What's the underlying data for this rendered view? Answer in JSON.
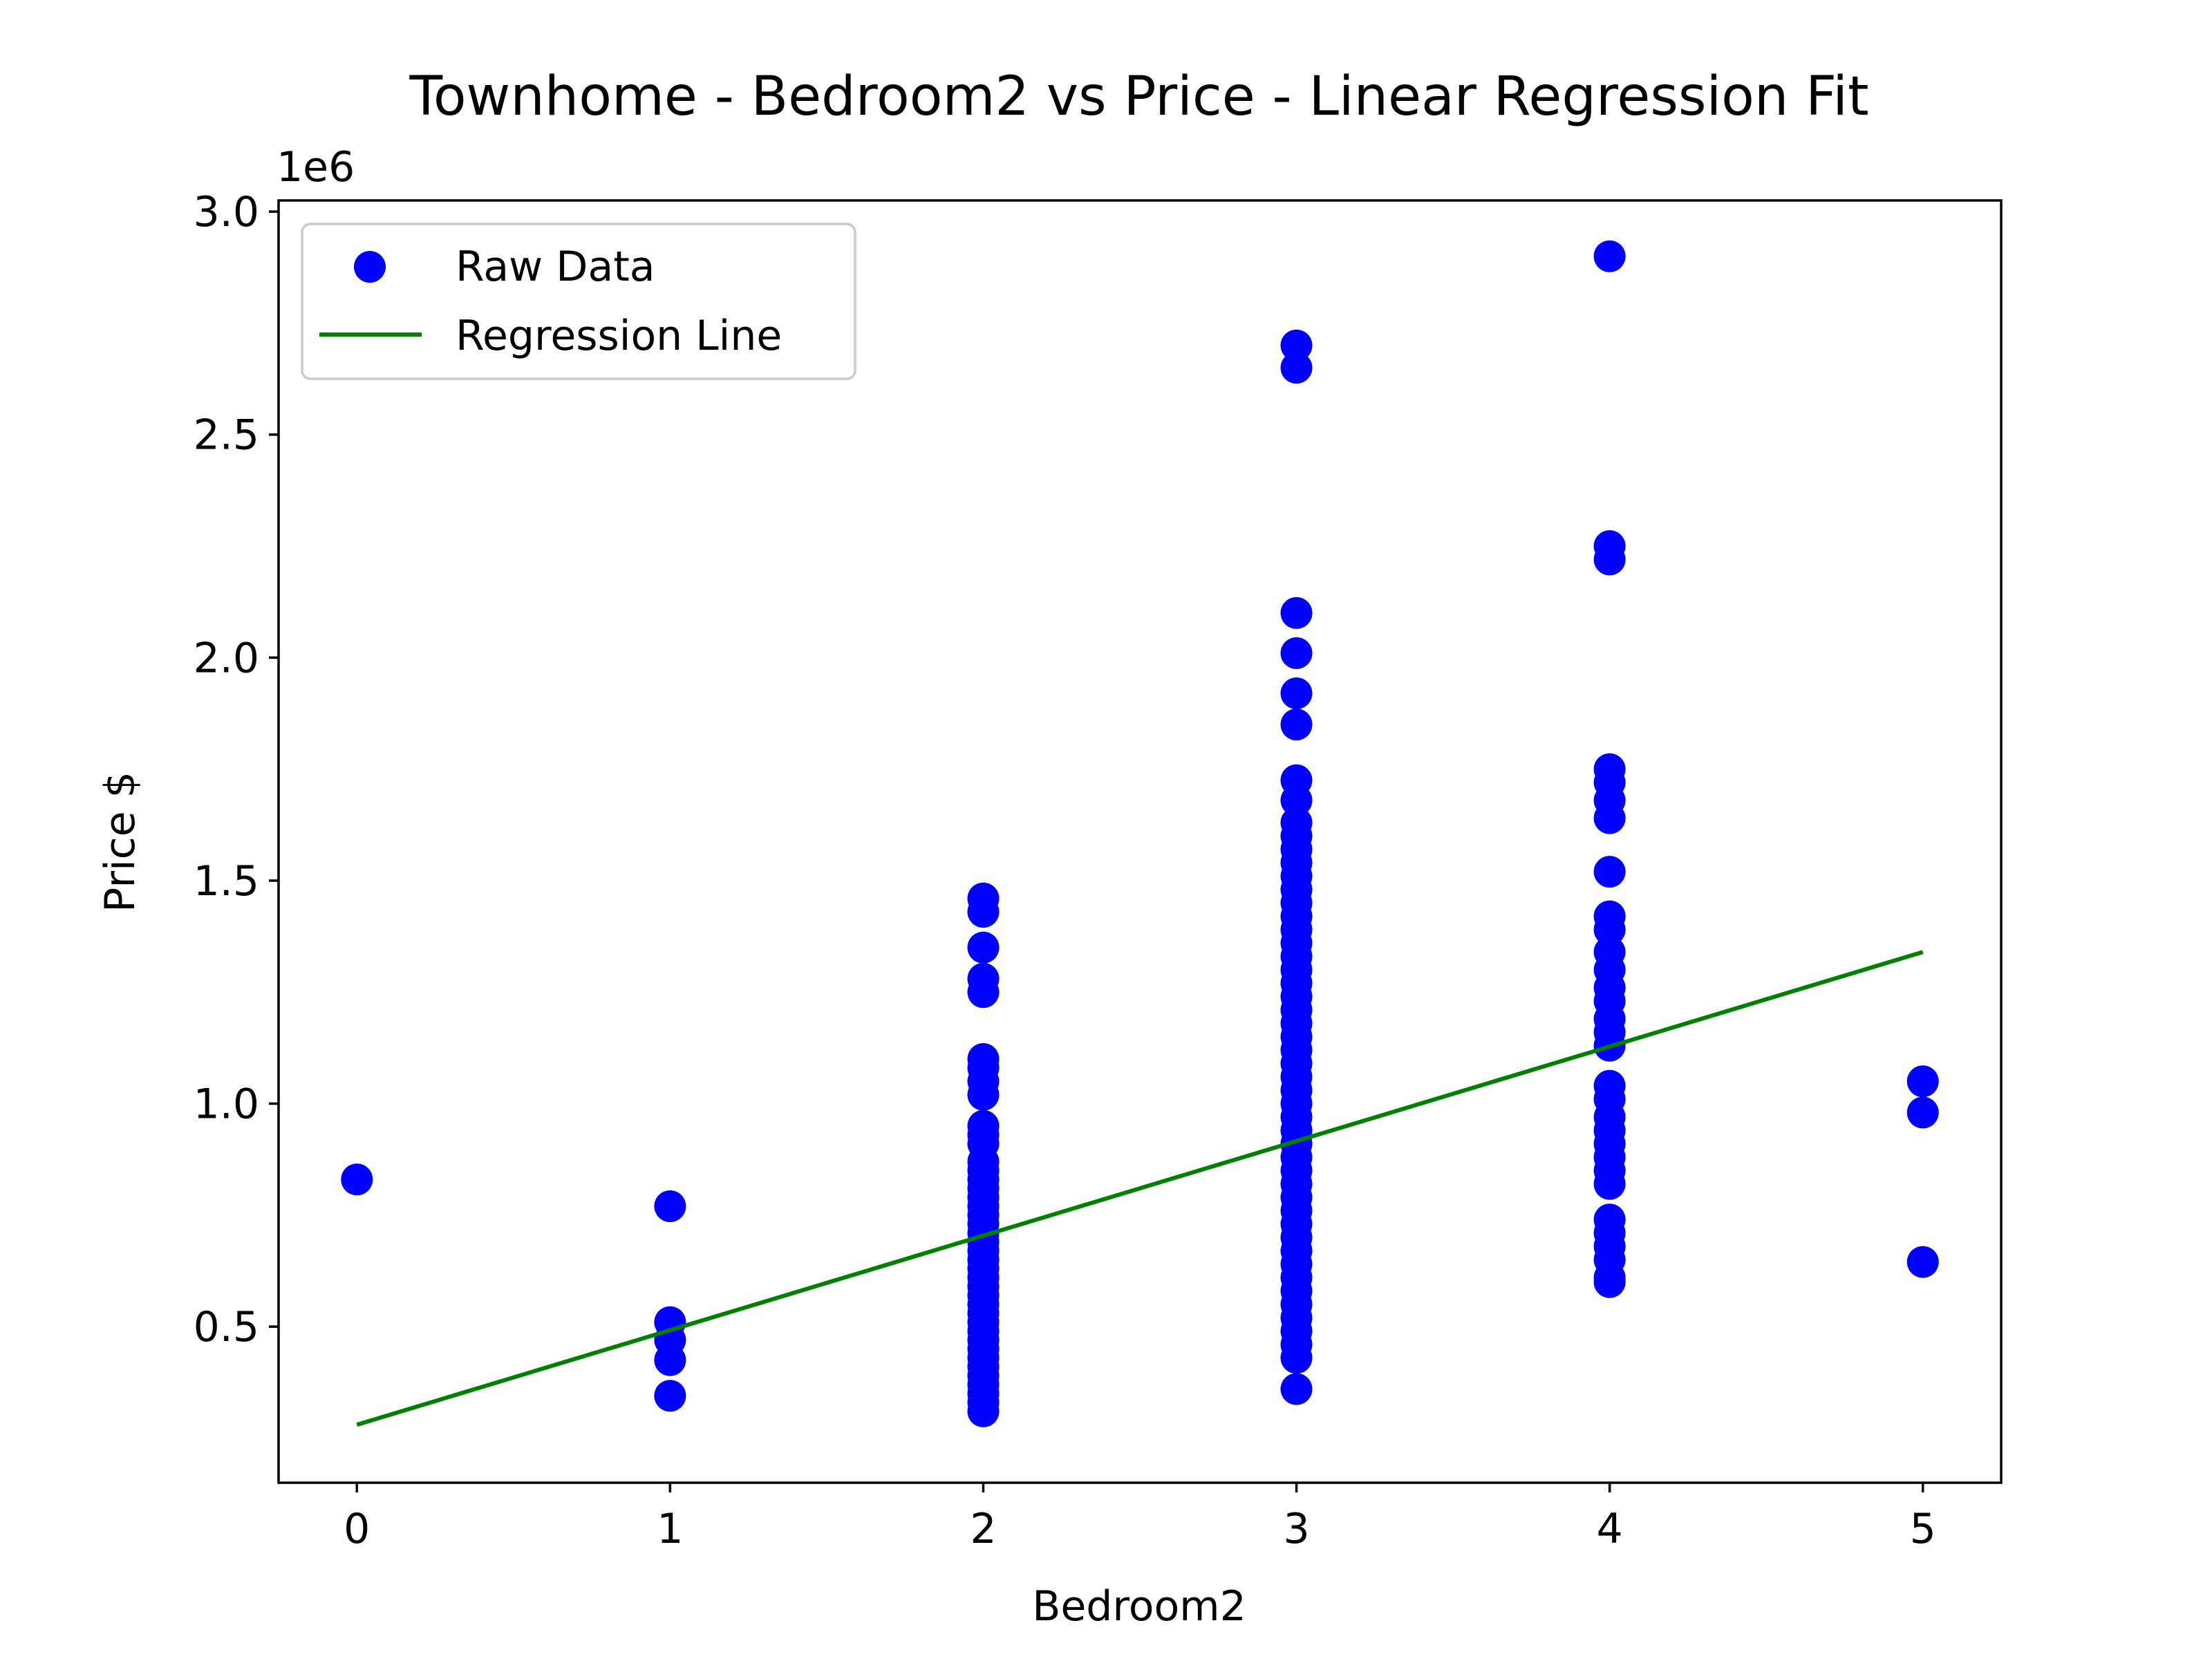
{
  "chart_data": {
    "type": "scatter",
    "title": "Townhome - Bedroom2 vs Price - Linear Regression Fit",
    "xlabel": "Bedroom2",
    "ylabel": "Price $",
    "y_multiplier_label": "1e6",
    "xlim": [
      -0.25,
      5.25
    ],
    "ylim": [
      150000,
      3025000
    ],
    "x_ticks": [
      0,
      1,
      2,
      3,
      4,
      5
    ],
    "x_tick_labels": [
      "0",
      "1",
      "2",
      "3",
      "4",
      "5"
    ],
    "y_ticks": [
      500000,
      1000000,
      1500000,
      2000000,
      2500000,
      3000000
    ],
    "y_tick_labels": [
      "0.5",
      "1.0",
      "1.5",
      "2.0",
      "2.5",
      "3.0"
    ],
    "grid": false,
    "legend": {
      "placement": "top-left",
      "entries": [
        "Raw Data",
        "Regression Line"
      ]
    },
    "series": [
      {
        "name": "Raw Data",
        "kind": "scatter",
        "color": "#0000ff",
        "points": [
          [
            0,
            830000
          ],
          [
            1,
            770000
          ],
          [
            1,
            510000
          ],
          [
            1,
            470000
          ],
          [
            1,
            425000
          ],
          [
            1,
            345000
          ],
          [
            2,
            1460000
          ],
          [
            2,
            1430000
          ],
          [
            2,
            1350000
          ],
          [
            2,
            1280000
          ],
          [
            2,
            1250000
          ],
          [
            2,
            1100000
          ],
          [
            2,
            1080000
          ],
          [
            2,
            1050000
          ],
          [
            2,
            1020000
          ],
          [
            2,
            950000
          ],
          [
            2,
            930000
          ],
          [
            2,
            910000
          ],
          [
            2,
            870000
          ],
          [
            2,
            850000
          ],
          [
            2,
            830000
          ],
          [
            2,
            810000
          ],
          [
            2,
            790000
          ],
          [
            2,
            770000
          ],
          [
            2,
            750000
          ],
          [
            2,
            730000
          ],
          [
            2,
            710000
          ],
          [
            2,
            690000
          ],
          [
            2,
            670000
          ],
          [
            2,
            650000
          ],
          [
            2,
            630000
          ],
          [
            2,
            610000
          ],
          [
            2,
            590000
          ],
          [
            2,
            570000
          ],
          [
            2,
            550000
          ],
          [
            2,
            530000
          ],
          [
            2,
            510000
          ],
          [
            2,
            490000
          ],
          [
            2,
            470000
          ],
          [
            2,
            450000
          ],
          [
            2,
            430000
          ],
          [
            2,
            410000
          ],
          [
            2,
            390000
          ],
          [
            2,
            370000
          ],
          [
            2,
            350000
          ],
          [
            2,
            330000
          ],
          [
            2,
            310000
          ],
          [
            3,
            2700000
          ],
          [
            3,
            2650000
          ],
          [
            3,
            2100000
          ],
          [
            3,
            2010000
          ],
          [
            3,
            1920000
          ],
          [
            3,
            1850000
          ],
          [
            3,
            1725000
          ],
          [
            3,
            1680000
          ],
          [
            3,
            1630000
          ],
          [
            3,
            1600000
          ],
          [
            3,
            1570000
          ],
          [
            3,
            1540000
          ],
          [
            3,
            1510000
          ],
          [
            3,
            1480000
          ],
          [
            3,
            1450000
          ],
          [
            3,
            1420000
          ],
          [
            3,
            1390000
          ],
          [
            3,
            1360000
          ],
          [
            3,
            1330000
          ],
          [
            3,
            1300000
          ],
          [
            3,
            1270000
          ],
          [
            3,
            1240000
          ],
          [
            3,
            1210000
          ],
          [
            3,
            1180000
          ],
          [
            3,
            1150000
          ],
          [
            3,
            1120000
          ],
          [
            3,
            1090000
          ],
          [
            3,
            1060000
          ],
          [
            3,
            1030000
          ],
          [
            3,
            1000000
          ],
          [
            3,
            970000
          ],
          [
            3,
            940000
          ],
          [
            3,
            910000
          ],
          [
            3,
            880000
          ],
          [
            3,
            850000
          ],
          [
            3,
            820000
          ],
          [
            3,
            790000
          ],
          [
            3,
            760000
          ],
          [
            3,
            730000
          ],
          [
            3,
            700000
          ],
          [
            3,
            670000
          ],
          [
            3,
            640000
          ],
          [
            3,
            610000
          ],
          [
            3,
            580000
          ],
          [
            3,
            550000
          ],
          [
            3,
            520000
          ],
          [
            3,
            490000
          ],
          [
            3,
            460000
          ],
          [
            3,
            430000
          ],
          [
            3,
            360000
          ],
          [
            4,
            2900000
          ],
          [
            4,
            2250000
          ],
          [
            4,
            2220000
          ],
          [
            4,
            1750000
          ],
          [
            4,
            1720000
          ],
          [
            4,
            1680000
          ],
          [
            4,
            1640000
          ],
          [
            4,
            1520000
          ],
          [
            4,
            1420000
          ],
          [
            4,
            1390000
          ],
          [
            4,
            1340000
          ],
          [
            4,
            1300000
          ],
          [
            4,
            1260000
          ],
          [
            4,
            1230000
          ],
          [
            4,
            1190000
          ],
          [
            4,
            1160000
          ],
          [
            4,
            1130000
          ],
          [
            4,
            1040000
          ],
          [
            4,
            1010000
          ],
          [
            4,
            970000
          ],
          [
            4,
            940000
          ],
          [
            4,
            910000
          ],
          [
            4,
            880000
          ],
          [
            4,
            850000
          ],
          [
            4,
            820000
          ],
          [
            4,
            740000
          ],
          [
            4,
            710000
          ],
          [
            4,
            680000
          ],
          [
            4,
            650000
          ],
          [
            4,
            610000
          ],
          [
            4,
            600000
          ],
          [
            5,
            1050000
          ],
          [
            5,
            980000
          ],
          [
            5,
            645000
          ]
        ]
      },
      {
        "name": "Regression Line",
        "kind": "line",
        "color": "#008000",
        "points": [
          [
            0,
            280000
          ],
          [
            5,
            1340000
          ]
        ]
      }
    ]
  }
}
